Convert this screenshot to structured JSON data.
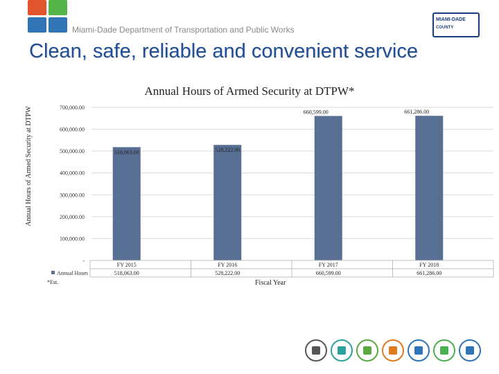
{
  "header": {
    "department": "Miami-Dade Department of Transportation and Public Works",
    "county_logo_line1": "MIAMI-DADE",
    "county_logo_line2": "COUNTY"
  },
  "headline": "Clean, safe, reliable and convenient service",
  "footnote": "*Est.",
  "colors": {
    "headline": "#1f4e96",
    "bar": "#586f94",
    "logo_top_left": "#e2542b",
    "logo_top_right": "#54b448",
    "logo_bottom_left": "#2f74b5",
    "logo_bottom_right": "#2f74b5"
  },
  "mode_icons": [
    {
      "name": "pedestrian-icon",
      "color": "#555555"
    },
    {
      "name": "car-icon",
      "color": "#2aa19a"
    },
    {
      "name": "bicycle-icon",
      "color": "#5aa83f"
    },
    {
      "name": "bus-icon",
      "color": "#e07a1f"
    },
    {
      "name": "metrobus-icon",
      "color": "#2f74b5"
    },
    {
      "name": "train-icon",
      "color": "#4caf50"
    },
    {
      "name": "accessible-icon",
      "color": "#2f74b5"
    }
  ],
  "chart_data": {
    "type": "bar",
    "title": "Annual Hours of Armed Security at DTPW*",
    "xlabel": "Fiscal Year",
    "ylabel": "Annual Hours of Armed Security at DTPW",
    "categories": [
      "FY 2015",
      "FY 2016",
      "FY 2017",
      "FY 2018"
    ],
    "series": [
      {
        "name": "Annual Hours",
        "values": [
          518063,
          528222,
          660599,
          661286
        ]
      }
    ],
    "data_labels": [
      "518,063.00",
      "528,222.00",
      "660,599.00",
      "661,286.00"
    ],
    "table_values": [
      "518,063.00",
      "528,222.00",
      "660,599.00",
      "661,286.00"
    ],
    "ylim": [
      0,
      700000
    ],
    "yticks": [
      0,
      100000,
      200000,
      300000,
      400000,
      500000,
      600000,
      700000
    ],
    "ytick_labels": [
      "-",
      "100,000.00",
      "200,000.00",
      "300,000.00",
      "400,000.00",
      "500,000.00",
      "600,000.00",
      "700,000.00"
    ],
    "grid": true,
    "legend": "data-table"
  }
}
